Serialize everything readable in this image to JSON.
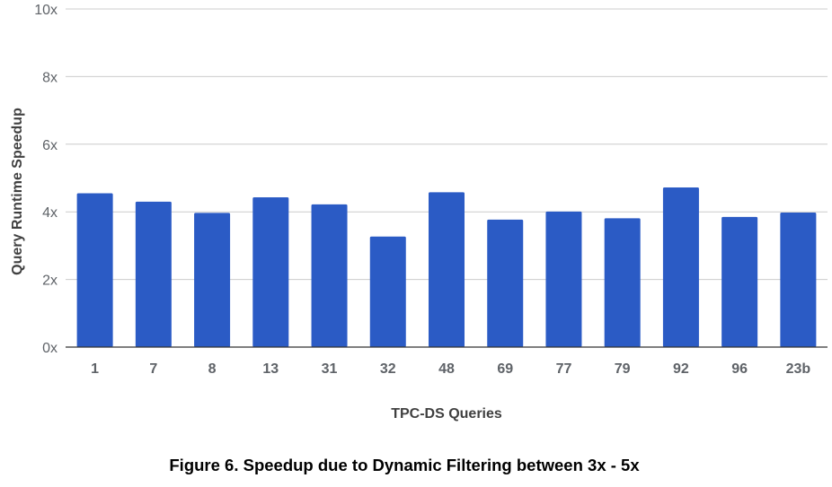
{
  "chart_data": {
    "type": "bar",
    "categories": [
      "1",
      "7",
      "8",
      "13",
      "31",
      "32",
      "48",
      "69",
      "77",
      "79",
      "92",
      "96",
      "23b"
    ],
    "values": [
      4.55,
      4.3,
      3.97,
      4.43,
      4.22,
      3.27,
      4.58,
      3.77,
      4.01,
      3.81,
      4.72,
      3.85,
      3.98
    ],
    "xlabel": "TPC-DS Queries",
    "ylabel": "Query Runtime Speedup",
    "ylim": [
      0,
      10
    ],
    "yticks": [
      "0x",
      "2x",
      "4x",
      "6x",
      "8x",
      "10x"
    ],
    "grid": true,
    "legend": "none",
    "bar_color": "#2b5bc5"
  },
  "caption": "Figure 6. Speedup due to Dynamic Filtering between 3x - 5x"
}
